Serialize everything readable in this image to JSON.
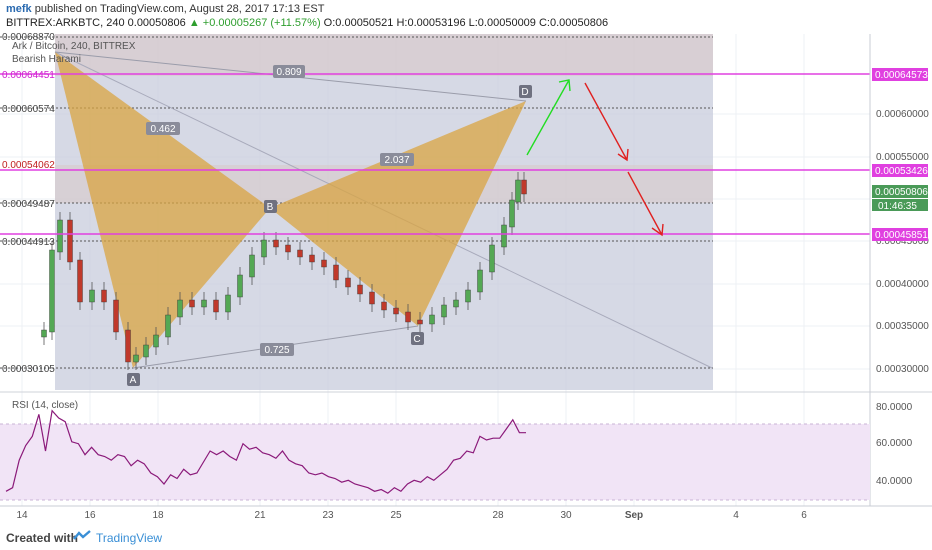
{
  "header": {
    "author": "mefk",
    "published_text": " published on TradingView.com, August 28, 2017 17:13 EST",
    "symbol_line": "BITTREX:ARKBTC, 240  0.00050806",
    "change": "▲ +0.00005267 (+11.57%)",
    "ohlc": " O:0.00050521 H:0.00053196 L:0.00050009 C:0.00050806"
  },
  "legend": {
    "title": "Ark / Bitcoin, 240, BITTREX",
    "pattern": "Bearish Harami"
  },
  "price_axis": {
    "ticks": [
      "0.00060000",
      "0.00055000",
      "0.00045000",
      "0.00040000",
      "0.00035000",
      "0.00030000"
    ],
    "left_labels": [
      "0.00068870",
      "0.00064451",
      "0.00060574",
      "0.00054062",
      "0.00049487",
      "0.00044913",
      "0.00030105"
    ],
    "tags": {
      "upper": "0.00064573",
      "middle": "0.00053426",
      "current": "0.00050806",
      "countdown": "01:46:35",
      "lower": "0.00045851"
    }
  },
  "rsi": {
    "title": "RSI (14, close)",
    "ticks": [
      "80.0000",
      "60.0000",
      "40.0000"
    ]
  },
  "time_axis": {
    "labels": [
      "14",
      "16",
      "18",
      "21",
      "23",
      "25",
      "28",
      "30",
      "Sep",
      "4",
      "6"
    ]
  },
  "pattern_labels": {
    "X_ratio": "0.809",
    "XB": "0.462",
    "BD": "2.037",
    "AC": "0.725",
    "A": "A",
    "B": "B",
    "C": "C",
    "D": "D"
  },
  "footer": {
    "created": "Created with",
    "brand": "TradingView"
  },
  "colors": {
    "pink_line": "#e040e0",
    "pattern_fill": "#d9a441",
    "up_candle": "#54a854",
    "down_candle": "#c0392b",
    "rsi_line": "#8b1a7a",
    "green_arrow": "#22dd22",
    "red_arrow": "#e02020"
  },
  "chart_data": {
    "type": "candlestick",
    "title": "Ark / Bitcoin, 240, BITTREX",
    "x": [
      "14",
      "16",
      "18",
      "21",
      "23",
      "25",
      "28",
      "30",
      "Sep",
      "4",
      "6"
    ],
    "horizontal_levels": [
      0.00064573,
      0.00053426,
      0.00045851
    ],
    "last_close": 0.00050806,
    "rsi_values": [
      38,
      40,
      55,
      63,
      68,
      80,
      60,
      82,
      78,
      76,
      65,
      64,
      58,
      62,
      58,
      57,
      55,
      58,
      57,
      52,
      55,
      53,
      48,
      46,
      42,
      47,
      45,
      50,
      47,
      48,
      54,
      60,
      58,
      60,
      57,
      55,
      64,
      61,
      62,
      59,
      58,
      56,
      60,
      55,
      53,
      52,
      48,
      47,
      48,
      46,
      45,
      43,
      44,
      42,
      41,
      40,
      38,
      39,
      37,
      40,
      38,
      42,
      44,
      43,
      46,
      44,
      47,
      50,
      55,
      56,
      60,
      59,
      68,
      66,
      67,
      67,
      72,
      77,
      70,
      70
    ],
    "rsi_ylim": [
      30,
      90
    ]
  }
}
